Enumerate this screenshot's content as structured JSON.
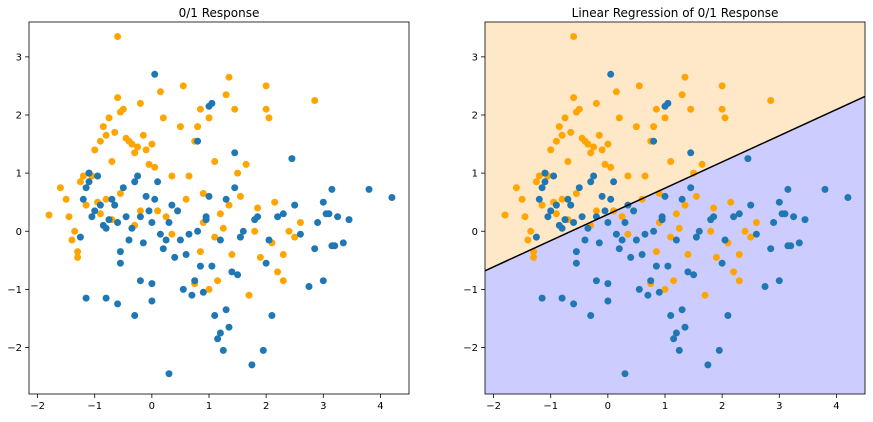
{
  "chart_data": [
    {
      "type": "scatter",
      "title": "0/1 Response",
      "xlabel": "",
      "ylabel": "",
      "xlim": [
        -2.15,
        4.5
      ],
      "ylim": [
        -2.8,
        3.6
      ],
      "xticks": [
        "−2",
        "−1",
        "0",
        "1",
        "2",
        "3",
        "4"
      ],
      "yticks": [
        "−2",
        "−1",
        "0",
        "1",
        "2",
        "3"
      ],
      "grid": false,
      "legend": "none",
      "series": [
        {
          "color": "#ffa500",
          "points": [
            [
              -1.8,
              0.28
            ],
            [
              -1.6,
              0.75
            ],
            [
              -1.5,
              0.55
            ],
            [
              -1.45,
              0.25
            ],
            [
              -1.4,
              -0.15
            ],
            [
              -1.35,
              0.0
            ],
            [
              -1.3,
              -0.35
            ],
            [
              -1.3,
              -0.45
            ],
            [
              -1.25,
              0.85
            ],
            [
              -1.2,
              0.95
            ],
            [
              -1.15,
              0.45
            ],
            [
              -1.1,
              1.0
            ],
            [
              -1.05,
              0.95
            ],
            [
              -1.0,
              1.4
            ],
            [
              -0.95,
              0.5
            ],
            [
              -0.9,
              1.55
            ],
            [
              -0.85,
              1.8
            ],
            [
              -0.8,
              1.65
            ],
            [
              -0.8,
              0.55
            ],
            [
              -0.75,
              1.95
            ],
            [
              -0.7,
              1.2
            ],
            [
              -0.7,
              0.2
            ],
            [
              -0.65,
              1.7
            ],
            [
              -0.6,
              2.3
            ],
            [
              -0.55,
              2.05
            ],
            [
              -0.5,
              2.1
            ],
            [
              -0.45,
              1.6
            ],
            [
              -0.4,
              1.55
            ],
            [
              -0.35,
              1.5
            ],
            [
              -0.3,
              1.35
            ],
            [
              -0.25,
              1.45
            ],
            [
              -0.2,
              2.2
            ],
            [
              -0.15,
              1.65
            ],
            [
              -0.1,
              1.4
            ],
            [
              -0.05,
              1.15
            ],
            [
              0.0,
              1.5
            ],
            [
              0.05,
              1.1
            ],
            [
              0.1,
              0.35
            ],
            [
              0.15,
              2.4
            ],
            [
              0.2,
              1.95
            ],
            [
              -0.6,
              3.35
            ],
            [
              0.5,
              1.8
            ],
            [
              0.55,
              2.5
            ],
            [
              0.65,
              0.95
            ],
            [
              0.75,
              1.55
            ],
            [
              0.8,
              1.8
            ],
            [
              0.85,
              2.1
            ],
            [
              0.9,
              0.65
            ],
            [
              1.0,
              1.95
            ],
            [
              1.1,
              1.2
            ],
            [
              1.2,
              0.3
            ],
            [
              1.3,
              2.35
            ],
            [
              1.35,
              2.65
            ],
            [
              1.45,
              2.1
            ],
            [
              1.5,
              1.0
            ],
            [
              1.55,
              0.6
            ],
            [
              1.65,
              1.15
            ],
            [
              1.7,
              -1.1
            ],
            [
              1.8,
              0.0
            ],
            [
              1.85,
              0.4
            ],
            [
              1.9,
              -0.45
            ],
            [
              2.0,
              2.1
            ],
            [
              2.05,
              1.95
            ],
            [
              2.1,
              -0.2
            ],
            [
              2.15,
              0.5
            ],
            [
              2.2,
              -0.7
            ],
            [
              2.3,
              -0.4
            ],
            [
              2.4,
              0.0
            ],
            [
              2.5,
              -0.1
            ],
            [
              2.6,
              0.15
            ],
            [
              2.85,
              2.25
            ],
            [
              -0.2,
              0.35
            ],
            [
              -0.3,
              0.1
            ],
            [
              0.25,
              0.25
            ],
            [
              0.35,
              -0.05
            ],
            [
              0.45,
              0.35
            ],
            [
              0.6,
              0.55
            ],
            [
              0.75,
              -0.9
            ],
            [
              0.85,
              -0.35
            ],
            [
              0.9,
              0.15
            ],
            [
              1.0,
              -1.0
            ],
            [
              1.1,
              -0.1
            ],
            [
              1.15,
              -0.85
            ],
            [
              1.25,
              0.05
            ],
            [
              1.35,
              0.45
            ],
            [
              1.4,
              -0.4
            ],
            [
              2.0,
              2.5
            ],
            [
              2.3,
              -0.85
            ],
            [
              -0.9,
              0.3
            ],
            [
              -0.55,
              0.65
            ],
            [
              0.35,
              0.95
            ]
          ]
        },
        {
          "color": "#1f77b4",
          "points": [
            [
              -1.15,
              -1.15
            ],
            [
              -0.8,
              -1.15
            ],
            [
              -0.6,
              -1.25
            ],
            [
              -0.3,
              -1.45
            ],
            [
              -0.2,
              -0.85
            ],
            [
              0.0,
              -1.2
            ],
            [
              -1.25,
              -0.1
            ],
            [
              -1.2,
              0.55
            ],
            [
              -1.15,
              0.75
            ],
            [
              -1.1,
              0.85
            ],
            [
              -1.1,
              1.0
            ],
            [
              -1.05,
              0.25
            ],
            [
              -1.0,
              0.35
            ],
            [
              -0.95,
              0.95
            ],
            [
              -0.9,
              0.45
            ],
            [
              -0.85,
              0.1
            ],
            [
              -0.8,
              0.05
            ],
            [
              -0.75,
              0.2
            ],
            [
              -0.7,
              0.55
            ],
            [
              -0.65,
              0.45
            ],
            [
              -0.6,
              0.15
            ],
            [
              -0.55,
              -0.35
            ],
            [
              -0.5,
              0.75
            ],
            [
              -0.45,
              0.25
            ],
            [
              -0.4,
              -0.15
            ],
            [
              -0.35,
              0.05
            ],
            [
              -0.3,
              0.85
            ],
            [
              -0.25,
              0.95
            ],
            [
              -0.2,
              0.25
            ],
            [
              -0.15,
              -0.2
            ],
            [
              -0.1,
              0.6
            ],
            [
              -0.05,
              0.35
            ],
            [
              0.0,
              0.15
            ],
            [
              0.05,
              2.7
            ],
            [
              0.1,
              0.85
            ],
            [
              0.15,
              -0.05
            ],
            [
              0.2,
              -0.3
            ],
            [
              0.25,
              -0.15
            ],
            [
              0.3,
              0.15
            ],
            [
              0.35,
              0.45
            ],
            [
              0.4,
              -0.45
            ],
            [
              0.45,
              0.35
            ],
            [
              0.5,
              -0.15
            ],
            [
              0.55,
              -1.0
            ],
            [
              0.6,
              -0.4
            ],
            [
              0.65,
              -0.05
            ],
            [
              0.7,
              -1.1
            ],
            [
              0.75,
              -0.85
            ],
            [
              0.8,
              0.0
            ],
            [
              0.85,
              -0.6
            ],
            [
              0.9,
              -1.05
            ],
            [
              0.95,
              0.25
            ],
            [
              1.0,
              0.6
            ],
            [
              1.0,
              2.15
            ],
            [
              1.05,
              -0.6
            ],
            [
              1.1,
              -1.45
            ],
            [
              1.15,
              -1.85
            ],
            [
              1.2,
              -1.75
            ],
            [
              1.25,
              -2.05
            ],
            [
              1.3,
              -1.35
            ],
            [
              1.35,
              -1.65
            ],
            [
              1.4,
              -0.7
            ],
            [
              1.45,
              0.75
            ],
            [
              1.5,
              -0.75
            ],
            [
              1.55,
              -0.1
            ],
            [
              1.6,
              0.0
            ],
            [
              1.75,
              -2.3
            ],
            [
              1.8,
              0.2
            ],
            [
              1.85,
              0.25
            ],
            [
              1.95,
              -2.05
            ],
            [
              2.0,
              -0.55
            ],
            [
              2.05,
              -0.15
            ],
            [
              2.1,
              -1.45
            ],
            [
              2.2,
              0.25
            ],
            [
              2.3,
              0.3
            ],
            [
              2.45,
              1.25
            ],
            [
              2.5,
              0.45
            ],
            [
              2.6,
              -0.05
            ],
            [
              2.75,
              -0.95
            ],
            [
              2.85,
              -0.3
            ],
            [
              2.9,
              0.15
            ],
            [
              3.0,
              0.5
            ],
            [
              3.1,
              0.3
            ],
            [
              3.15,
              -0.25
            ],
            [
              3.2,
              -0.25
            ],
            [
              3.25,
              0.25
            ],
            [
              3.35,
              -0.2
            ],
            [
              3.45,
              0.2
            ],
            [
              3.8,
              0.72
            ],
            [
              4.2,
              0.58
            ],
            [
              0.05,
              0.55
            ],
            [
              0.3,
              -2.45
            ],
            [
              0.8,
              1.55
            ],
            [
              0.95,
              0.2
            ],
            [
              1.05,
              2.2
            ],
            [
              1.3,
              0.55
            ],
            [
              1.45,
              1.35
            ],
            [
              3.05,
              0.3
            ],
            [
              3.15,
              0.72
            ],
            [
              3.0,
              -0.85
            ],
            [
              0.0,
              -0.9
            ],
            [
              -0.55,
              -0.55
            ],
            [
              1.2,
              -0.15
            ]
          ]
        }
      ]
    },
    {
      "type": "scatter",
      "title": "Linear Regression of 0/1 Response",
      "xlabel": "",
      "ylabel": "",
      "xlim": [
        -2.15,
        4.5
      ],
      "ylim": [
        -2.8,
        3.6
      ],
      "xticks": [
        "−2",
        "−1",
        "0",
        "1",
        "2",
        "3",
        "4"
      ],
      "yticks": [
        "−2",
        "−1",
        "0",
        "1",
        "2",
        "3"
      ],
      "grid": false,
      "legend": "none",
      "regions": {
        "above": "#ffe8c8",
        "below": "#cccdfe"
      },
      "decision_boundary": {
        "color": "#000000",
        "x": [
          -2.15,
          4.5
        ],
        "y": [
          -0.68,
          2.32
        ]
      },
      "series_ref": "same as first chart"
    }
  ]
}
